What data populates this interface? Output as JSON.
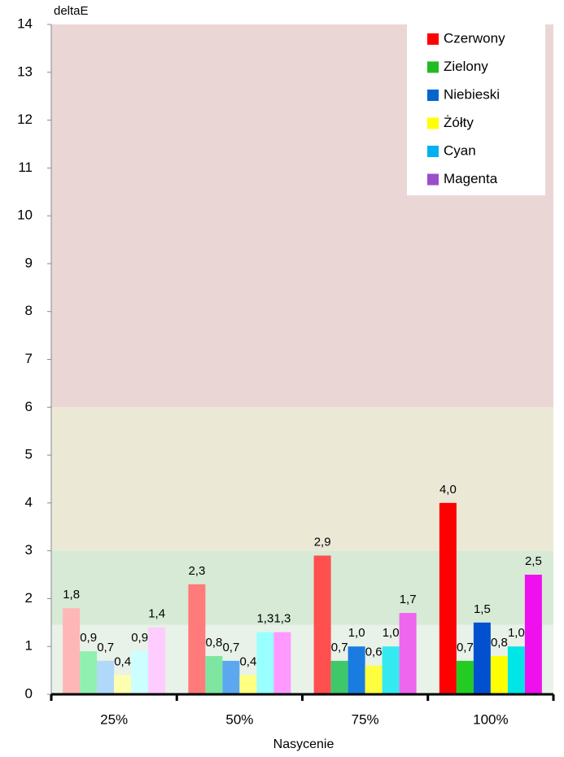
{
  "chart_data": {
    "type": "bar",
    "y_label": "deltaE",
    "x_label": "Nasycenie",
    "categories": [
      "25%",
      "50%",
      "75%",
      "100%"
    ],
    "ylim": [
      0,
      14
    ],
    "yticks": [
      0,
      1,
      2,
      3,
      4,
      5,
      6,
      7,
      8,
      9,
      10,
      11,
      12,
      13,
      14
    ],
    "bands": [
      {
        "from": 0,
        "to": 1.45,
        "color": "#e8f2e8"
      },
      {
        "from": 1.45,
        "to": 3,
        "color": "#d6ead6"
      },
      {
        "from": 3,
        "to": 6,
        "color": "#ebe9d6"
      },
      {
        "from": 6,
        "to": 14,
        "color": "#ebd6d6"
      }
    ],
    "legend": "top-right",
    "series": [
      {
        "name": "Czerwony",
        "color": "#ff0000",
        "colors": [
          "#ffb6b6",
          "#ff7a7a",
          "#ff4f4f",
          "#ff0000"
        ],
        "values": [
          1.8,
          2.3,
          2.9,
          4.0
        ],
        "value_labels": [
          "1,8",
          "2,3",
          "2,9",
          "4,0"
        ]
      },
      {
        "name": "Zielony",
        "color": "#22bb22",
        "colors": [
          "#90f0b0",
          "#7ee6a0",
          "#3fc86a",
          "#22cc22"
        ],
        "values": [
          0.9,
          0.8,
          0.7,
          0.7
        ],
        "value_labels": [
          "0,9",
          "0,8",
          "0,7",
          "0,7"
        ]
      },
      {
        "name": "Niebieski",
        "color": "#0066cc",
        "colors": [
          "#b0d8f8",
          "#5ca8f0",
          "#1a7ce0",
          "#0050d0"
        ],
        "values": [
          0.7,
          0.7,
          1.0,
          1.5
        ],
        "value_labels": [
          "0,7",
          "0,7",
          "1,0",
          "1,5"
        ]
      },
      {
        "name": "Żółty",
        "color": "#ffff00",
        "colors": [
          "#ffffb0",
          "#ffff80",
          "#ffff40",
          "#ffff00"
        ],
        "values": [
          0.4,
          0.4,
          0.6,
          0.8
        ],
        "value_labels": [
          "0,4",
          "0,4",
          "0,6",
          "0,8"
        ]
      },
      {
        "name": "Cyan",
        "color": "#00b0f0",
        "colors": [
          "#ccffff",
          "#99ffff",
          "#33eaf0",
          "#00e6e6"
        ],
        "values": [
          0.9,
          1.3,
          1.0,
          1.0
        ],
        "value_labels": [
          "0,9",
          "1,3",
          "1,0",
          "1,0"
        ]
      },
      {
        "name": "Magenta",
        "color": "#9b4dca",
        "colors": [
          "#ffccff",
          "#ff99ff",
          "#ee66ee",
          "#ee11ee"
        ],
        "values": [
          1.4,
          1.3,
          1.7,
          2.5
        ],
        "value_labels": [
          "1,4",
          "1,3",
          "1,7",
          "2,5"
        ]
      }
    ]
  }
}
